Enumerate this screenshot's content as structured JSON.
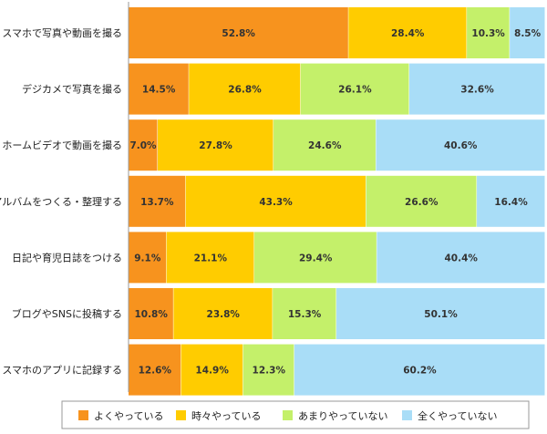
{
  "chart_data": {
    "type": "bar",
    "orientation": "horizontal",
    "stacked": true,
    "percent": true,
    "categories": [
      "スマホで写真や動画を撮る",
      "デジカメで写真を撮る",
      "ホームビデオで動画を撮る",
      "アルバムをつくる・整理する",
      "日記や育児日誌をつける",
      "ブログやSNSに投稿する",
      "スマホのアプリに記録する"
    ],
    "series": [
      {
        "name": "よくやっている",
        "color": "#f7931e",
        "values": [
          52.8,
          14.5,
          7.0,
          13.7,
          9.1,
          10.8,
          12.6
        ]
      },
      {
        "name": "時々やっている",
        "color": "#ffcc00",
        "values": [
          28.4,
          26.8,
          27.8,
          43.3,
          21.1,
          23.8,
          14.9
        ]
      },
      {
        "name": "あまりやっていない",
        "color": "#c4f06a",
        "values": [
          10.3,
          26.1,
          24.6,
          26.6,
          29.4,
          15.3,
          12.3
        ]
      },
      {
        "name": "全くやっていない",
        "color": "#a9ddf7",
        "values": [
          8.5,
          32.6,
          40.6,
          16.4,
          40.4,
          50.1,
          60.2
        ]
      }
    ],
    "value_labels": [
      [
        "52.8%",
        "28.4%",
        "10.3%",
        "8.5%"
      ],
      [
        "14.5%",
        "26.8%",
        "26.1%",
        "32.6%"
      ],
      [
        "7.0%",
        "27.8%",
        "24.6%",
        "40.6%"
      ],
      [
        "13.7%",
        "43.3%",
        "26.6%",
        "16.4%"
      ],
      [
        "9.1%",
        "21.1%",
        "29.4%",
        "40.4%"
      ],
      [
        "10.8%",
        "23.8%",
        "15.3%",
        "50.1%"
      ],
      [
        "12.6%",
        "14.9%",
        "12.3%",
        "60.2%"
      ]
    ],
    "title": "",
    "xlabel": "",
    "ylabel": "",
    "xlim": [
      0,
      100
    ],
    "grid": false,
    "legend": "bottom"
  }
}
